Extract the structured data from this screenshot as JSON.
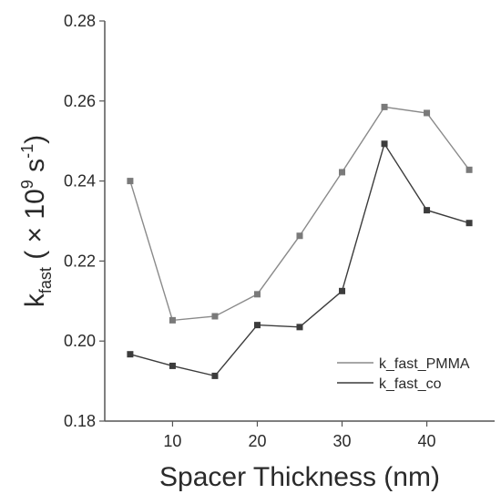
{
  "chart_data": {
    "type": "line",
    "xlabel": "Spacer Thickness (nm)",
    "ylabel": {
      "base": "k",
      "subscript": "fast",
      "paren_open": " ( ",
      "times": "× 10",
      "exponent": "9",
      "unit": " s",
      "unit_exponent": "-1",
      "paren_close": ")"
    },
    "xlim": [
      2,
      48
    ],
    "ylim": [
      0.18,
      0.28
    ],
    "x_ticks": [
      10,
      20,
      30,
      40
    ],
    "y_ticks": [
      0.18,
      0.2,
      0.22,
      0.24,
      0.26,
      0.28
    ],
    "y_tick_labels": [
      "0.18",
      "0.20",
      "0.22",
      "0.24",
      "0.26",
      "0.28"
    ],
    "grid": false,
    "legend_position": "bottom-right",
    "x": [
      5,
      10,
      15,
      20,
      25,
      30,
      35,
      40,
      45
    ],
    "series": [
      {
        "name": "k_fast_PMMA",
        "color": "#8a8a8a",
        "marker_color": "#7a7a7a",
        "values": [
          0.24,
          0.2052,
          0.2062,
          0.2117,
          0.2263,
          0.2422,
          0.2585,
          0.257,
          0.2428
        ]
      },
      {
        "name": "k_fast_co",
        "color": "#3c3c3c",
        "marker_color": "#3c3c3c",
        "values": [
          0.1967,
          0.1938,
          0.1913,
          0.204,
          0.2035,
          0.2125,
          0.2493,
          0.2327,
          0.2295
        ]
      }
    ]
  }
}
